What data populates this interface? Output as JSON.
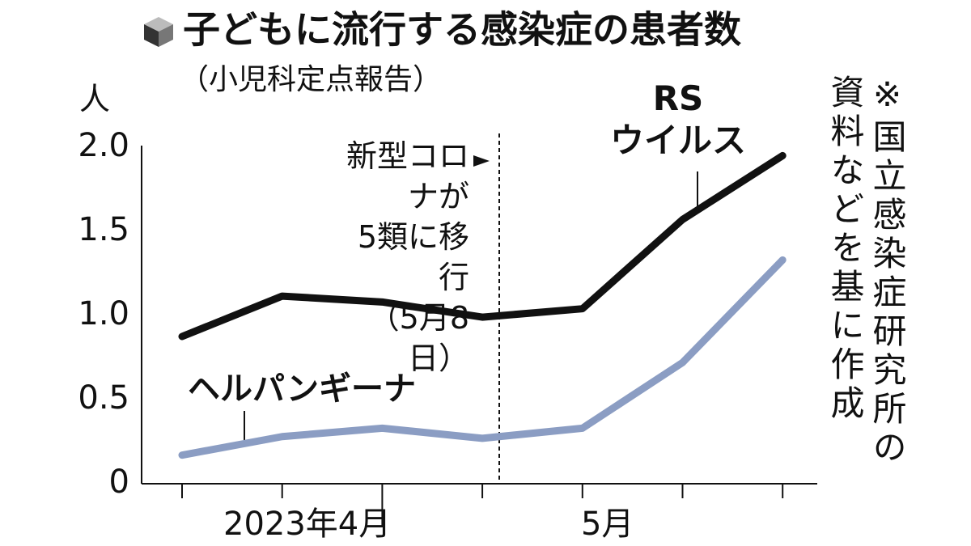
{
  "chart_data": {
    "type": "line",
    "title": "子どもに流行する感染症の患者数",
    "subtitle": "（小児科定点報告）",
    "y_label": "人",
    "categories": [
      null,
      "2023年4月",
      null,
      null,
      "5月",
      null,
      null
    ],
    "series": [
      {
        "name": "RS\nウイルス",
        "color": "#111111",
        "values": [
          0.875,
          1.115,
          1.08,
          0.99,
          1.04,
          1.57,
          1.95
        ]
      },
      {
        "name": "ヘルパンギーナ",
        "color": "#8b9dc3",
        "values": [
          0.17,
          0.28,
          0.33,
          0.27,
          0.33,
          0.72,
          1.33
        ]
      }
    ],
    "ylim": [
      0,
      2
    ],
    "yticks": [
      0,
      0.5,
      {
        "value": 1,
        "label": "1.0"
      },
      1.5,
      {
        "value": 2,
        "label": "2.0"
      }
    ],
    "grid": false,
    "annotation": "新型コロナが\n5類に移行\n（5月8日）",
    "note": "※国立感染症研究所の資料などを基に作成"
  }
}
